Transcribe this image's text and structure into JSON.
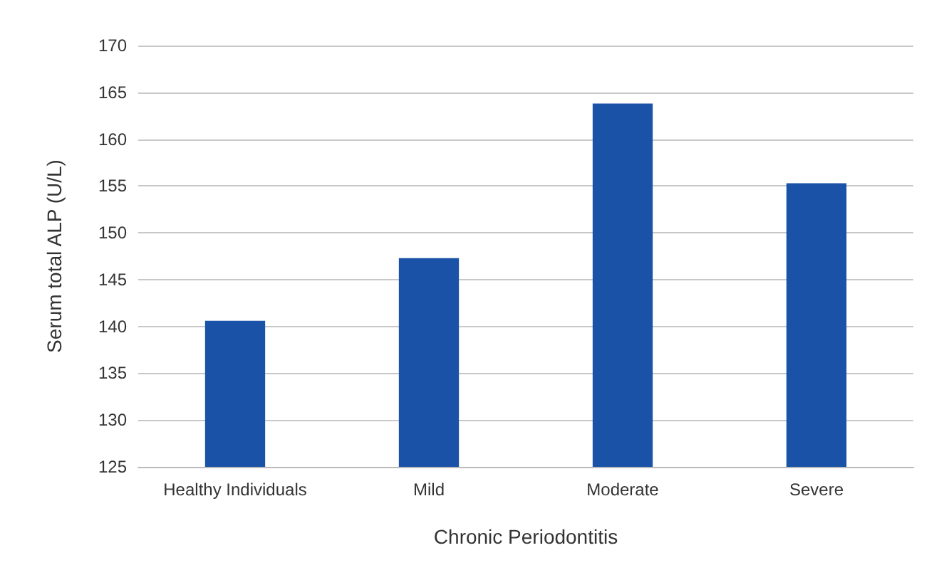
{
  "chart_data": {
    "type": "bar",
    "xlabel": "Chronic Periodontitis",
    "ylabel": "Serum total ALP (U/L)",
    "categories": [
      "Healthy Individuals",
      "Mild",
      "Moderate",
      "Severe"
    ],
    "values": [
      140.6,
      147.3,
      163.8,
      155.3
    ],
    "color": "#1a52a8",
    "ylim": [
      125,
      170
    ],
    "yticks": [
      125,
      130,
      135,
      140,
      145,
      150,
      155,
      160,
      165,
      170
    ],
    "grid": true
  }
}
